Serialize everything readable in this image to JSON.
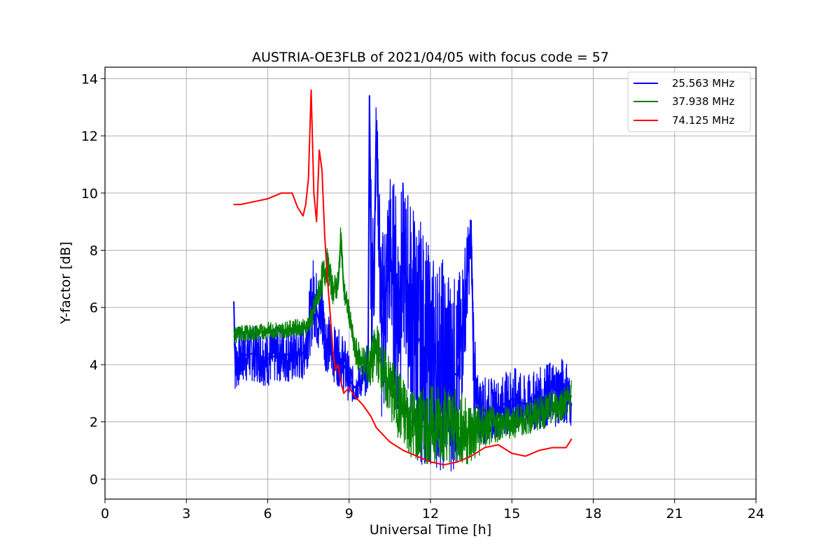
{
  "chart_data": {
    "type": "line",
    "title": "AUSTRIA-OE3FLB of 2021/04/05 with focus code = 57",
    "xlabel": "Universal Time [h]",
    "ylabel": "Y-factor [dB]",
    "xlim": [
      0,
      24
    ],
    "ylim": [
      -0.7,
      14.4
    ],
    "xticks": [
      0,
      3,
      6,
      9,
      12,
      15,
      18,
      21,
      24
    ],
    "yticks": [
      0,
      2,
      4,
      6,
      8,
      10,
      12,
      14
    ],
    "grid": true,
    "legend_position": "top-right",
    "series": [
      {
        "name": "25.563 MHz",
        "color": "#0000ff",
        "x": [
          4.75,
          4.8,
          5.0,
          5.5,
          6.0,
          6.5,
          7.0,
          7.3,
          7.5,
          7.7,
          7.9,
          8.0,
          8.1,
          8.3,
          8.5,
          8.7,
          8.9,
          9.0,
          9.2,
          9.4,
          9.6,
          9.7,
          9.75,
          9.8,
          9.9,
          10.0,
          10.2,
          10.5,
          10.8,
          11.0,
          11.5,
          12.0,
          12.5,
          13.0,
          13.5,
          13.6,
          13.7,
          14.0,
          14.5,
          15.0,
          15.5,
          16.0,
          16.5,
          17.0,
          17.2
        ],
        "y": [
          6.2,
          4.0,
          4.3,
          4.4,
          4.2,
          4.4,
          4.3,
          4.4,
          5.2,
          6.5,
          5.4,
          6.0,
          5.0,
          4.6,
          4.3,
          4.2,
          3.8,
          3.5,
          3.2,
          3.4,
          3.6,
          4.0,
          13.4,
          8.5,
          6.0,
          12.5,
          5.0,
          8.0,
          6.0,
          7.5,
          5.0,
          4.2,
          4.0,
          3.6,
          8.5,
          4.0,
          2.5,
          2.4,
          2.5,
          2.8,
          2.6,
          2.8,
          3.0,
          3.1,
          2.6
        ],
        "spread": [
          1.1,
          1.0,
          1.0,
          1.0,
          1.0,
          1.0,
          1.0,
          1.0,
          1.2,
          1.5,
          1.2,
          1.5,
          1.2,
          1.0,
          1.0,
          1.0,
          1.0,
          0.8,
          0.6,
          0.6,
          0.7,
          1.0,
          0.1,
          3.5,
          3.0,
          1.0,
          3.5,
          3.0,
          4.0,
          3.0,
          4.5,
          3.8,
          3.8,
          3.4,
          1.0,
          2.0,
          1.2,
          1.2,
          1.0,
          1.2,
          1.0,
          1.1,
          1.2,
          1.2,
          0.8
        ]
      },
      {
        "name": "37.938 MHz",
        "color": "#008000",
        "x": [
          4.75,
          5.0,
          5.5,
          6.0,
          6.5,
          7.0,
          7.4,
          7.6,
          7.8,
          8.0,
          8.2,
          8.4,
          8.6,
          8.7,
          8.8,
          9.0,
          9.2,
          9.5,
          9.8,
          10.0,
          10.3,
          10.6,
          11.0,
          11.5,
          12.0,
          12.5,
          13.0,
          13.5,
          14.0,
          14.5,
          15.0,
          15.5,
          16.0,
          16.5,
          17.0,
          17.2
        ],
        "y": [
          5.0,
          5.1,
          5.1,
          5.2,
          5.2,
          5.3,
          5.3,
          5.6,
          6.2,
          7.0,
          7.5,
          6.6,
          6.8,
          8.6,
          6.6,
          5.8,
          4.5,
          4.1,
          3.9,
          4.6,
          3.6,
          3.0,
          2.3,
          1.8,
          1.9,
          2.0,
          1.8,
          1.6,
          1.8,
          1.9,
          2.0,
          2.1,
          2.3,
          2.5,
          2.7,
          2.9
        ],
        "spread": [
          0.3,
          0.3,
          0.3,
          0.3,
          0.3,
          0.3,
          0.3,
          0.4,
          0.5,
          0.6,
          0.6,
          0.5,
          0.5,
          0.5,
          0.5,
          0.4,
          0.5,
          0.6,
          0.8,
          1.0,
          1.0,
          1.2,
          1.3,
          1.3,
          1.4,
          1.4,
          1.3,
          1.2,
          0.8,
          0.6,
          0.6,
          0.6,
          0.6,
          0.6,
          0.6,
          0.6
        ]
      },
      {
        "name": "74.125 MHz",
        "color": "#ff0000",
        "x": [
          4.75,
          5.0,
          5.5,
          6.0,
          6.5,
          6.9,
          7.1,
          7.3,
          7.4,
          7.5,
          7.6,
          7.7,
          7.8,
          7.9,
          8.0,
          8.1,
          8.2,
          8.3,
          8.4,
          8.5,
          8.6,
          8.7,
          8.8,
          9.0,
          9.2,
          9.5,
          9.8,
          10.0,
          10.5,
          11.0,
          11.5,
          12.0,
          12.5,
          13.0,
          13.5,
          14.0,
          14.5,
          15.0,
          15.5,
          16.0,
          16.5,
          17.0,
          17.2
        ],
        "y": [
          9.6,
          9.6,
          9.7,
          9.8,
          10.0,
          10.0,
          9.5,
          9.2,
          9.6,
          10.5,
          13.6,
          10.0,
          9.0,
          11.5,
          10.8,
          8.5,
          7.0,
          5.8,
          4.5,
          3.8,
          4.0,
          3.4,
          3.0,
          3.2,
          2.9,
          2.6,
          2.2,
          1.8,
          1.3,
          1.0,
          0.8,
          0.6,
          0.5,
          0.6,
          0.8,
          1.1,
          1.2,
          0.9,
          0.8,
          1.0,
          1.1,
          1.1,
          1.4
        ]
      }
    ]
  }
}
